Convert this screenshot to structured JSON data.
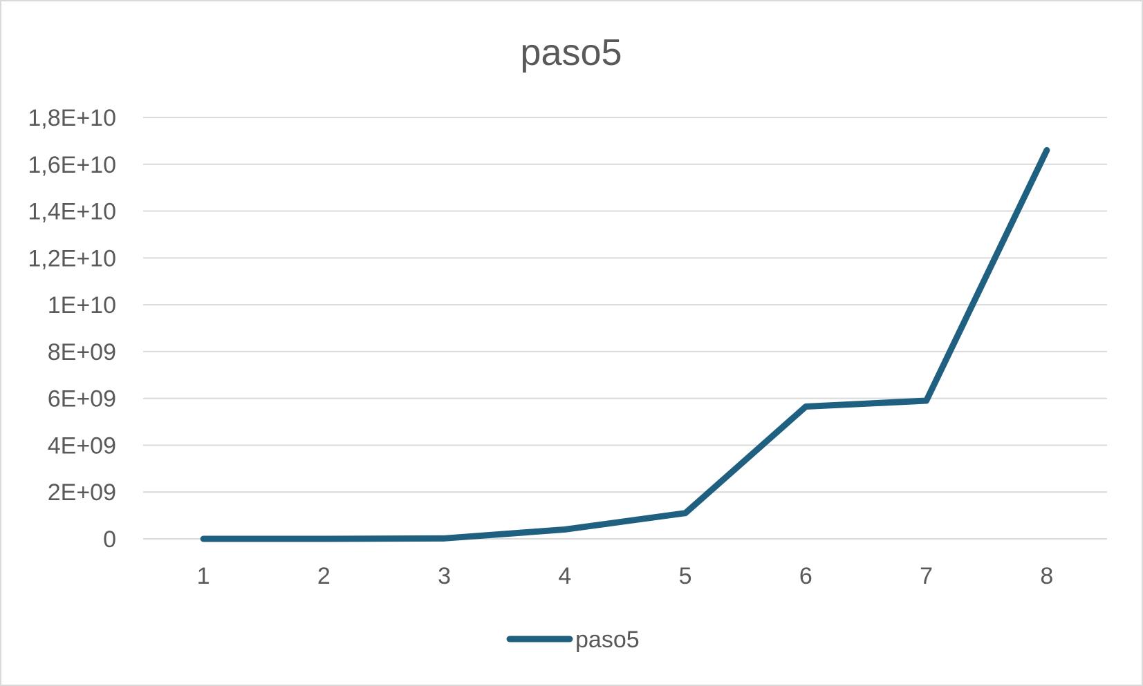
{
  "chart_data": {
    "type": "line",
    "title": "paso5",
    "xlabel": "",
    "ylabel": "",
    "categories": [
      "1",
      "2",
      "3",
      "4",
      "5",
      "6",
      "7",
      "8"
    ],
    "y_ticks": [
      "0",
      "2E+09",
      "4E+09",
      "6E+09",
      "8E+09",
      "1E+10",
      "1,2E+10",
      "1,4E+10",
      "1,6E+10",
      "1,8E+10"
    ],
    "ylim": [
      0,
      18000000000
    ],
    "series": [
      {
        "name": "paso5",
        "color": "#1F5F7F",
        "values": [
          0,
          0,
          20000000,
          400000000,
          1100000000,
          5650000000,
          5900000000,
          16600000000
        ]
      }
    ],
    "grid": true,
    "legend": "bottom"
  }
}
